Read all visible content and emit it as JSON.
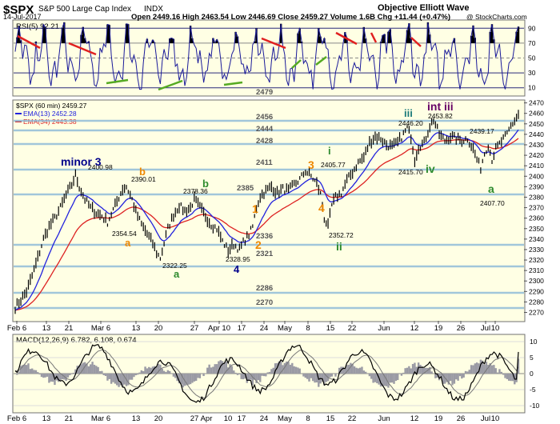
{
  "header": {
    "symbol": "$SPX",
    "name": "S&P 500 Large Cap Index",
    "exchange": "INDX",
    "date": "14-Jul-2017",
    "quote": "Open 2449.16  High 2463.54  Low 2446.69  Close 2459.27  Volume 1.6B  Chg +11.44 (+0.47%)",
    "brand": "Objective Elliott Wave",
    "copyright": "@ StockCharts.com"
  },
  "rsi": {
    "label": "RSI(5) 92.21",
    "levels": [
      90,
      70,
      50,
      30,
      10
    ],
    "level_labels": [
      "90",
      "70",
      "50",
      "30",
      "10"
    ],
    "value": 92.21
  },
  "price_legend": {
    "symbol_line": "$SPX (60 min) 2459.27",
    "ema13": "EMA(13) 2452.28",
    "ema34": "EMA(34) 2443.38"
  },
  "macd": {
    "label": "MACD(12,26,9) 6.782, 6.108, 0.674",
    "ticks": [
      "10",
      "5",
      "0",
      "-5",
      "-10"
    ]
  },
  "colors": {
    "panel_bg": "#ffffe4",
    "price": "#000000",
    "ema13": "#2222dd",
    "ema34": "#dd2222",
    "rsi": "#1a1a9a",
    "level_line": "#8ab8d8",
    "histogram": "#9a9aa4",
    "wave_blue": "#00008b",
    "wave_orange": "#ee8800",
    "wave_green": "#2e8b2e",
    "wave_purple": "#660066",
    "wave_teal": "#1a7a7a"
  },
  "chart_data": {
    "type": "line",
    "interval": "60 min",
    "ylim": [
      2262,
      2472
    ],
    "y_ticks": [
      2270,
      2280,
      2290,
      2300,
      2310,
      2320,
      2330,
      2340,
      2350,
      2360,
      2370,
      2380,
      2390,
      2400,
      2410,
      2420,
      2430,
      2440,
      2450,
      2460,
      2470
    ],
    "x_ticks": [
      "Feb 6",
      "13",
      "21",
      "Mar 6",
      "13",
      "20",
      "27",
      "Apr 10",
      "17",
      "24",
      "May",
      "8",
      "15",
      "22",
      "Jun",
      "12",
      "19",
      "26",
      "Jul",
      "10"
    ],
    "x_ticks_lower": [
      "Feb 6",
      "13",
      "21",
      "Mar 6",
      "13",
      "20",
      "27",
      "Apr",
      "10",
      "17",
      "24",
      "May",
      "8",
      "15",
      "22",
      "Jun",
      "12",
      "19",
      "26",
      "Jul",
      "10"
    ],
    "levels": [
      {
        "label": "2479",
        "value": 2479
      },
      {
        "label": "2456",
        "value": 2456
      },
      {
        "label": "2444",
        "value": 2444
      },
      {
        "label": "2428",
        "value": 2428
      },
      {
        "label": "2411",
        "value": 2411
      },
      {
        "label": "2385",
        "value": 2385
      },
      {
        "label": "2336",
        "value": 2336
      },
      {
        "label": "2321",
        "value": 2321
      },
      {
        "label": "2286",
        "value": 2286
      },
      {
        "label": "2270",
        "value": 2270
      }
    ],
    "price_labels": [
      {
        "label": "2400.98",
        "value": 2400.98
      },
      {
        "label": "2390.01",
        "value": 2390.01
      },
      {
        "label": "2378.36",
        "value": 2378.36
      },
      {
        "label": "2354.54",
        "value": 2354.54
      },
      {
        "label": "2322.25",
        "value": 2322.25
      },
      {
        "label": "2328.95",
        "value": 2328.95
      },
      {
        "label": "2405.77",
        "value": 2405.77
      },
      {
        "label": "2352.72",
        "value": 2352.72
      },
      {
        "label": "2446.20",
        "value": 2446.2
      },
      {
        "label": "2453.82",
        "value": 2453.82
      },
      {
        "label": "2415.70",
        "value": 2415.7
      },
      {
        "label": "2439.17",
        "value": 2439.17
      },
      {
        "label": "2407.70",
        "value": 2407.7
      }
    ],
    "waves": [
      {
        "label": "minor 3",
        "color": "wave_blue"
      },
      {
        "label": "b",
        "color": "wave_orange"
      },
      {
        "label": "b",
        "color": "wave_green"
      },
      {
        "label": "a",
        "color": "wave_orange"
      },
      {
        "label": "a",
        "color": "wave_green"
      },
      {
        "label": "4",
        "color": "wave_blue"
      },
      {
        "label": "1",
        "color": "wave_orange"
      },
      {
        "label": "2",
        "color": "wave_orange"
      },
      {
        "label": "3",
        "color": "wave_orange"
      },
      {
        "label": "4",
        "color": "wave_orange"
      },
      {
        "label": "i",
        "color": "wave_green"
      },
      {
        "label": "ii",
        "color": "wave_green"
      },
      {
        "label": "iii",
        "color": "wave_teal"
      },
      {
        "label": "int iii",
        "color": "wave_purple"
      },
      {
        "label": "iv",
        "color": "wave_green"
      },
      {
        "label": "a",
        "color": "wave_green"
      }
    ],
    "series": [
      {
        "name": "$SPX",
        "anchors": [
          [
            0,
            2275
          ],
          [
            3,
            2282
          ],
          [
            6,
            2290
          ],
          [
            9,
            2305
          ],
          [
            12,
            2322
          ],
          [
            15,
            2340
          ],
          [
            18,
            2352
          ],
          [
            21,
            2360
          ],
          [
            24,
            2370
          ],
          [
            27,
            2382
          ],
          [
            30,
            2392
          ],
          [
            32,
            2401
          ],
          [
            34,
            2390
          ],
          [
            37,
            2378
          ],
          [
            40,
            2370
          ],
          [
            43,
            2365
          ],
          [
            46,
            2362
          ],
          [
            49,
            2356
          ],
          [
            51,
            2364
          ],
          [
            54,
            2376
          ],
          [
            57,
            2388
          ],
          [
            59,
            2390
          ],
          [
            62,
            2378
          ],
          [
            64,
            2366
          ],
          [
            67,
            2354
          ],
          [
            70,
            2345
          ],
          [
            73,
            2336
          ],
          [
            75,
            2327
          ],
          [
            77,
            2322
          ],
          [
            79,
            2336
          ],
          [
            81,
            2350
          ],
          [
            84,
            2363
          ],
          [
            87,
            2372
          ],
          [
            90,
            2367
          ],
          [
            93,
            2370
          ],
          [
            95,
            2378
          ],
          [
            98,
            2370
          ],
          [
            101,
            2362
          ],
          [
            104,
            2354
          ],
          [
            107,
            2350
          ],
          [
            110,
            2338
          ],
          [
            113,
            2329
          ],
          [
            116,
            2335
          ],
          [
            119,
            2330
          ],
          [
            121,
            2337
          ],
          [
            124,
            2344
          ],
          [
            126,
            2352
          ],
          [
            128,
            2370
          ],
          [
            130,
            2381
          ],
          [
            133,
            2386
          ],
          [
            136,
            2390
          ],
          [
            139,
            2384
          ],
          [
            142,
            2388
          ],
          [
            145,
            2386
          ],
          [
            148,
            2392
          ],
          [
            151,
            2397
          ],
          [
            154,
            2405
          ],
          [
            157,
            2400
          ],
          [
            160,
            2393
          ],
          [
            162,
            2383
          ],
          [
            164,
            2360
          ],
          [
            166,
            2352
          ],
          [
            168,
            2372
          ],
          [
            170,
            2380
          ],
          [
            173,
            2384
          ],
          [
            176,
            2396
          ],
          [
            179,
            2404
          ],
          [
            182,
            2413
          ],
          [
            185,
            2418
          ],
          [
            188,
            2432
          ],
          [
            191,
            2438
          ],
          [
            194,
            2436
          ],
          [
            197,
            2430
          ],
          [
            200,
            2428
          ],
          [
            203,
            2432
          ],
          [
            206,
            2440
          ],
          [
            208,
            2446
          ],
          [
            210,
            2438
          ],
          [
            212,
            2416
          ],
          [
            214,
            2428
          ],
          [
            217,
            2432
          ],
          [
            220,
            2448
          ],
          [
            222,
            2454
          ],
          [
            225,
            2440
          ],
          [
            228,
            2434
          ],
          [
            231,
            2438
          ],
          [
            234,
            2436
          ],
          [
            237,
            2434
          ],
          [
            240,
            2436
          ],
          [
            243,
            2426
          ],
          [
            245,
            2416
          ],
          [
            247,
            2408
          ],
          [
            249,
            2422
          ],
          [
            251,
            2430
          ],
          [
            253,
            2416
          ],
          [
            255,
            2426
          ],
          [
            258,
            2433
          ],
          [
            261,
            2440
          ],
          [
            263,
            2448
          ],
          [
            265,
            2453
          ],
          [
            267,
            2459
          ]
        ]
      },
      {
        "name": "EMA(13)",
        "value": 2452.28
      },
      {
        "name": "EMA(34)",
        "value": 2443.38
      }
    ]
  }
}
